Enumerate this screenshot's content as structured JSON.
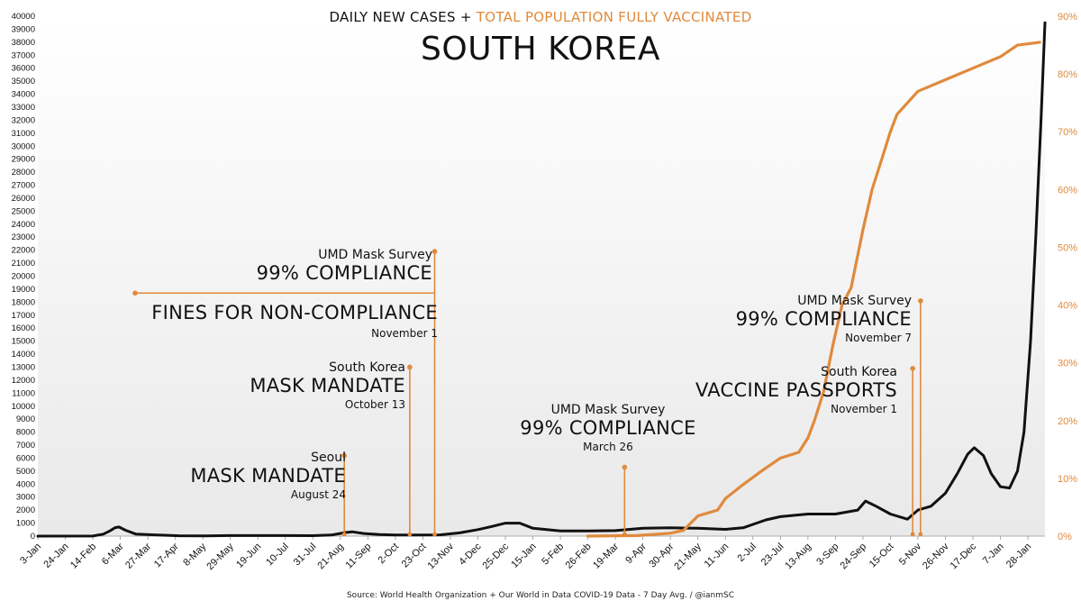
{
  "header": {
    "subtitle_part1": "DAILY NEW CASES +",
    "subtitle_part2": "TOTAL POPULATION FULLY VACCINATED",
    "title": "SOUTH KOREA"
  },
  "footer": {
    "source": "Source: World Health Organization  + Our World in Data COVID-19 Data - 7 Day Avg. / @ianmSC"
  },
  "colors": {
    "cases": "#111111",
    "vaccinated": "#e08a3c",
    "annotation": "#e08a3c",
    "grid": "#e6e6e6"
  },
  "annotations": [
    {
      "id": "seoul-mask",
      "small": "Seoul",
      "big": "MASK MANDATE",
      "date": "August 24",
      "x_date": "2020-08-24",
      "y_top": 6200
    },
    {
      "id": "sk-mask",
      "small": "South Korea",
      "big": "MASK MANDATE",
      "date": "October 13",
      "x_date": "2020-10-13",
      "y_top": 13000
    },
    {
      "id": "umd-2020",
      "small": "UMD Mask Survey",
      "big": "99% COMPLIANCE",
      "date": "",
      "x_date": "2020-11-01",
      "y_top": 21900
    },
    {
      "id": "fines",
      "small": "",
      "big": "FINES FOR NON-COMPLIANCE",
      "date": "November 1",
      "x_date": "2020-11-01",
      "y_top": 18700
    },
    {
      "id": "umd-2021-mar",
      "small": "UMD Mask Survey",
      "big": "99% COMPLIANCE",
      "date": "March 26",
      "x_date": "2021-03-26",
      "y_top": 5300
    },
    {
      "id": "umd-2021-nov",
      "small": "UMD Mask Survey",
      "big": "99% COMPLIANCE",
      "date": "November 7",
      "x_date": "2021-11-07",
      "y_top": 18100
    },
    {
      "id": "passports",
      "small": "South Korea",
      "big": "VACCINE PASSPORTS",
      "date": "November 1",
      "x_date": "2021-11-01",
      "y_top": 12900
    }
  ],
  "chart_data": {
    "type": "line",
    "x_start": "2020-01-03",
    "x_end": "2022-02-10",
    "x_tick_labels": [
      "3-Jan",
      "24-Jan",
      "14-Feb",
      "6-Mar",
      "27-Mar",
      "17-Apr",
      "8-May",
      "29-May",
      "19-Jun",
      "10-Jul",
      "31-Jul",
      "21-Aug",
      "11-Sep",
      "2-Oct",
      "23-Oct",
      "13-Nov",
      "4-Dec",
      "25-Dec",
      "15-Jan",
      "5-Feb",
      "26-Feb",
      "19-Mar",
      "9-Apr",
      "30-Apr",
      "21-May",
      "11-Jun",
      "2-Jul",
      "23-Jul",
      "13-Aug",
      "3-Sep",
      "24-Sep",
      "15-Oct",
      "5-Nov",
      "26-Nov",
      "17-Dec",
      "7-Jan",
      "28-Jan"
    ],
    "x_tick_dates": [
      "2020-01-03",
      "2020-01-24",
      "2020-02-14",
      "2020-03-06",
      "2020-03-27",
      "2020-04-17",
      "2020-05-08",
      "2020-05-29",
      "2020-06-19",
      "2020-07-10",
      "2020-07-31",
      "2020-08-21",
      "2020-09-11",
      "2020-10-02",
      "2020-10-23",
      "2020-11-13",
      "2020-12-04",
      "2020-12-25",
      "2021-01-15",
      "2021-02-05",
      "2021-02-26",
      "2021-03-19",
      "2021-04-09",
      "2021-04-30",
      "2021-05-21",
      "2021-06-11",
      "2021-07-02",
      "2021-07-23",
      "2021-08-13",
      "2021-09-03",
      "2021-09-24",
      "2021-10-15",
      "2021-11-05",
      "2021-11-26",
      "2021-12-17",
      "2022-01-07",
      "2022-01-28"
    ],
    "y_left": {
      "min": 0,
      "max": 40000,
      "step": 1000
    },
    "y_right": {
      "min": 0,
      "max": 90,
      "step": 10,
      "unit": "%"
    },
    "series": [
      {
        "name": "DAILY NEW CASES",
        "axis": "left",
        "points": [
          [
            "2020-01-03",
            0
          ],
          [
            "2020-02-14",
            10
          ],
          [
            "2020-02-22",
            150
          ],
          [
            "2020-02-27",
            400
          ],
          [
            "2020-03-02",
            650
          ],
          [
            "2020-03-05",
            700
          ],
          [
            "2020-03-10",
            450
          ],
          [
            "2020-03-18",
            150
          ],
          [
            "2020-04-01",
            100
          ],
          [
            "2020-04-20",
            30
          ],
          [
            "2020-05-10",
            20
          ],
          [
            "2020-05-29",
            40
          ],
          [
            "2020-06-19",
            45
          ],
          [
            "2020-07-10",
            45
          ],
          [
            "2020-07-31",
            35
          ],
          [
            "2020-08-14",
            80
          ],
          [
            "2020-08-25",
            280
          ],
          [
            "2020-08-30",
            330
          ],
          [
            "2020-09-08",
            200
          ],
          [
            "2020-09-20",
            120
          ],
          [
            "2020-10-02",
            80
          ],
          [
            "2020-10-20",
            80
          ],
          [
            "2020-11-05",
            100
          ],
          [
            "2020-11-20",
            250
          ],
          [
            "2020-12-04",
            500
          ],
          [
            "2020-12-15",
            750
          ],
          [
            "2020-12-25",
            1000
          ],
          [
            "2021-01-05",
            1000
          ],
          [
            "2021-01-15",
            600
          ],
          [
            "2021-02-05",
            400
          ],
          [
            "2021-02-26",
            400
          ],
          [
            "2021-03-19",
            420
          ],
          [
            "2021-04-09",
            600
          ],
          [
            "2021-04-30",
            640
          ],
          [
            "2021-05-21",
            600
          ],
          [
            "2021-06-11",
            520
          ],
          [
            "2021-06-25",
            650
          ],
          [
            "2021-07-02",
            900
          ],
          [
            "2021-07-12",
            1250
          ],
          [
            "2021-07-23",
            1500
          ],
          [
            "2021-08-13",
            1700
          ],
          [
            "2021-09-03",
            1700
          ],
          [
            "2021-09-20",
            2000
          ],
          [
            "2021-09-26",
            2700
          ],
          [
            "2021-10-04",
            2300
          ],
          [
            "2021-10-15",
            1700
          ],
          [
            "2021-10-28",
            1300
          ],
          [
            "2021-11-05",
            2000
          ],
          [
            "2021-11-15",
            2300
          ],
          [
            "2021-11-26",
            3300
          ],
          [
            "2021-12-05",
            4800
          ],
          [
            "2021-12-13",
            6300
          ],
          [
            "2021-12-18",
            6800
          ],
          [
            "2021-12-25",
            6200
          ],
          [
            "2021-12-31",
            4800
          ],
          [
            "2022-01-07",
            3800
          ],
          [
            "2022-01-14",
            3700
          ],
          [
            "2022-01-20",
            5000
          ],
          [
            "2022-01-25",
            8000
          ],
          [
            "2022-01-30",
            15000
          ],
          [
            "2022-02-03",
            23000
          ],
          [
            "2022-02-07",
            32000
          ],
          [
            "2022-02-10",
            39500
          ]
        ]
      },
      {
        "name": "TOTAL POPULATION FULLY VACCINATED",
        "axis": "right",
        "points": [
          [
            "2021-02-26",
            0
          ],
          [
            "2021-04-05",
            0.1
          ],
          [
            "2021-04-30",
            0.5
          ],
          [
            "2021-05-10",
            1
          ],
          [
            "2021-05-21",
            3.5
          ],
          [
            "2021-06-05",
            4.5
          ],
          [
            "2021-06-11",
            6.5
          ],
          [
            "2021-06-25",
            9
          ],
          [
            "2021-07-10",
            11.5
          ],
          [
            "2021-07-23",
            13.5
          ],
          [
            "2021-08-06",
            14.5
          ],
          [
            "2021-08-13",
            17
          ],
          [
            "2021-08-18",
            20
          ],
          [
            "2021-08-25",
            25
          ],
          [
            "2021-09-01",
            33
          ],
          [
            "2021-09-08",
            40
          ],
          [
            "2021-09-15",
            43
          ],
          [
            "2021-09-24",
            53
          ],
          [
            "2021-10-01",
            60
          ],
          [
            "2021-10-08",
            65
          ],
          [
            "2021-10-15",
            70
          ],
          [
            "2021-10-20",
            73
          ],
          [
            "2021-10-28",
            75
          ],
          [
            "2021-11-05",
            77
          ],
          [
            "2021-11-26",
            79
          ],
          [
            "2021-12-17",
            81
          ],
          [
            "2022-01-07",
            83
          ],
          [
            "2022-01-20",
            85
          ],
          [
            "2022-02-06",
            85.5
          ]
        ]
      }
    ]
  }
}
